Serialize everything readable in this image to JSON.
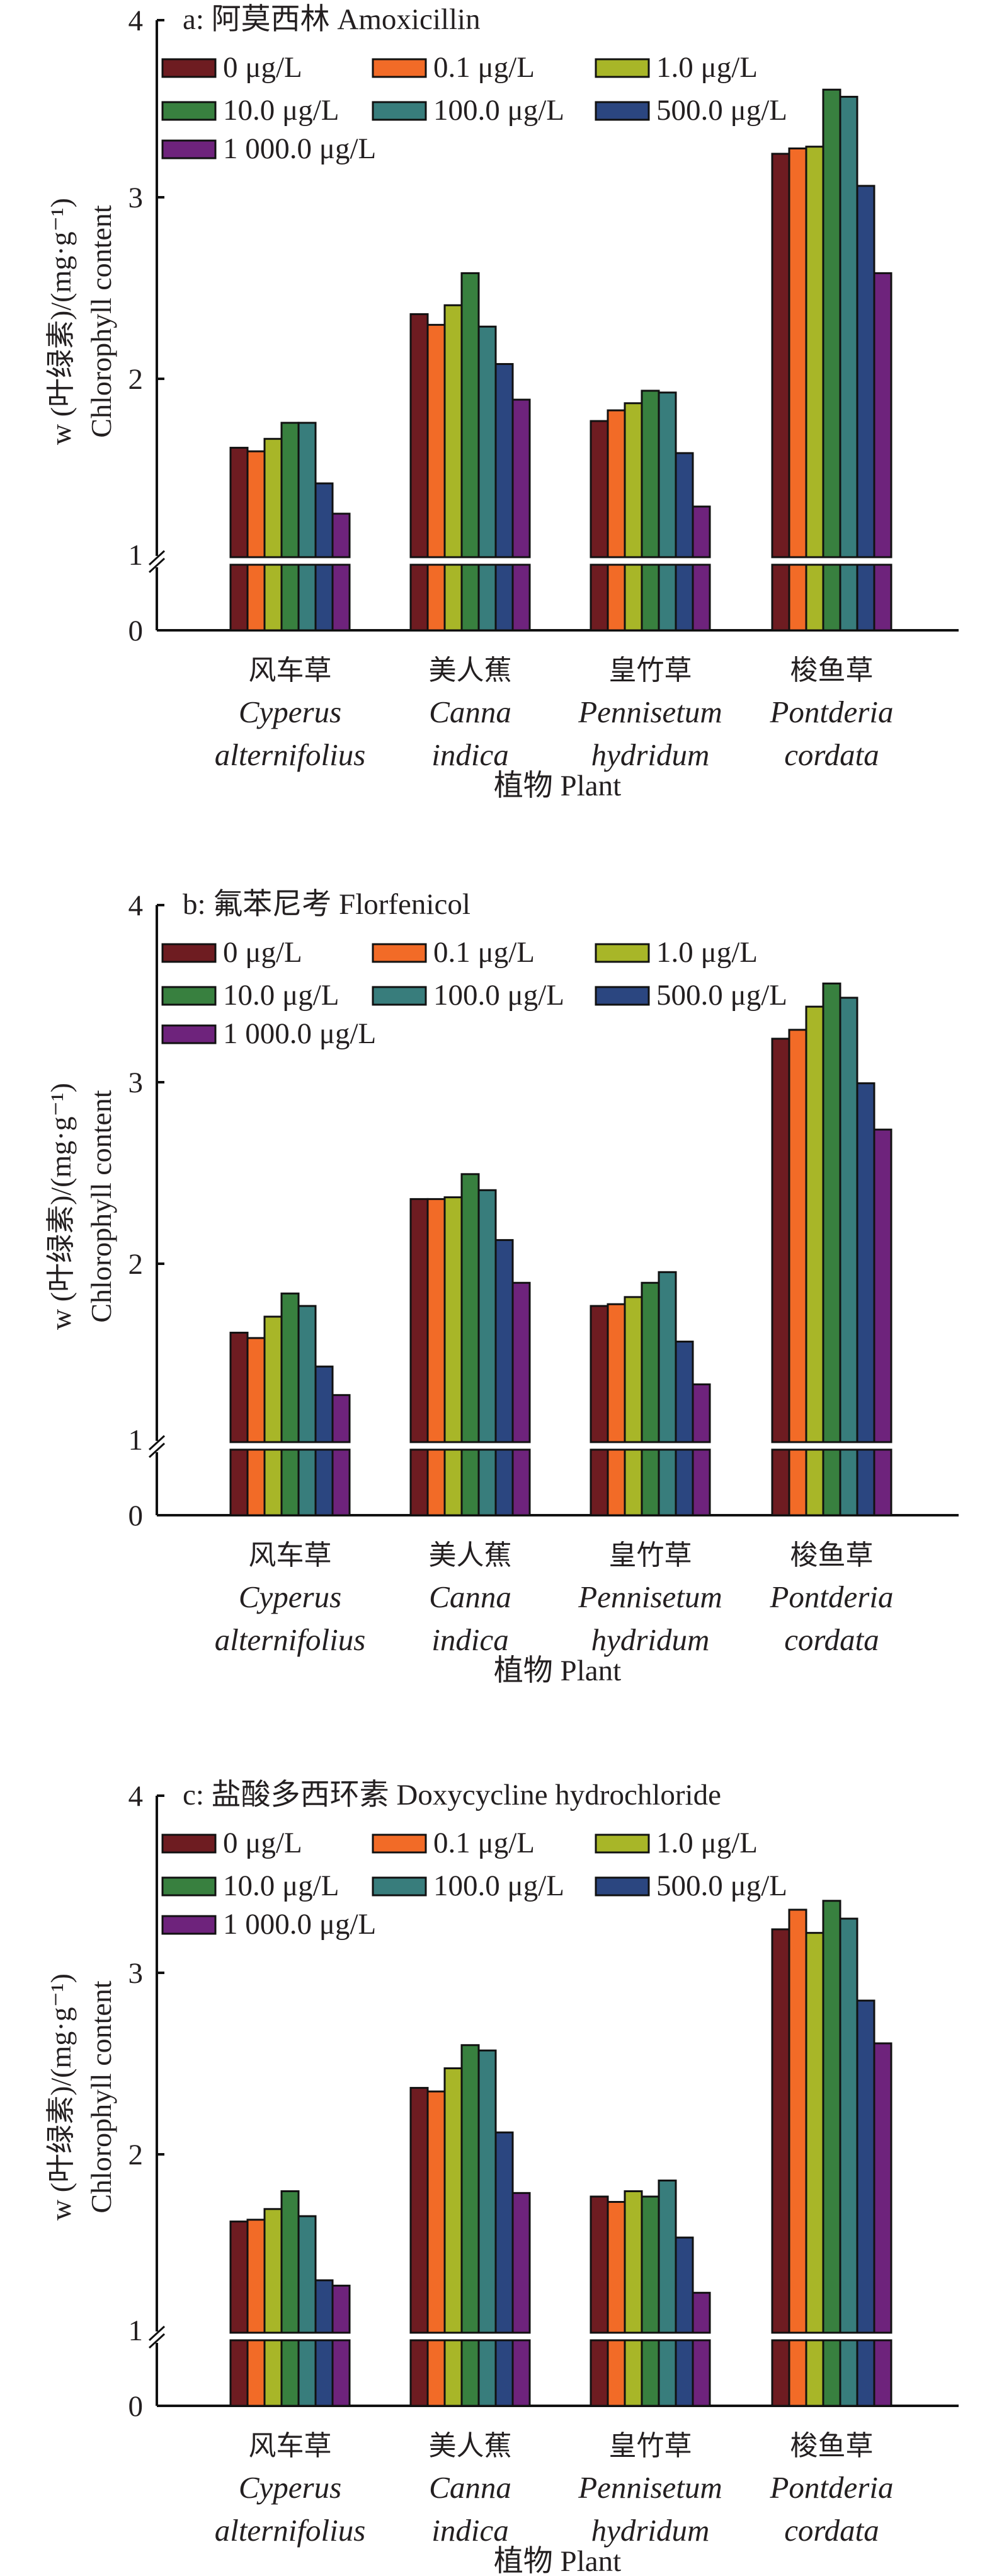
{
  "chart_data": {
    "type": "bar",
    "y_axis_label_line1": "w (叶绿素)/(mg·g⁻¹)",
    "y_axis_label_line2": "Chlorophyll content",
    "xlabel": "植物 Plant",
    "yticks": [
      "0",
      "1",
      "2",
      "3",
      "4"
    ],
    "ylim": [
      0,
      4
    ],
    "axis_break": "between 0 and 1",
    "grid": false,
    "legend_position": "top-left",
    "categories": [
      {
        "cn": "风车草",
        "latin1": "Cyperus",
        "latin2": "alternifolius"
      },
      {
        "cn": "美人蕉",
        "latin1": "Canna",
        "latin2": "indica"
      },
      {
        "cn": "皇竹草",
        "latin1": "Pennisetum",
        "latin2": "hydridum"
      },
      {
        "cn": "梭鱼草",
        "latin1": "Pontderia",
        "latin2": "cordata"
      }
    ],
    "series_meta": [
      {
        "name": "0 μg/L",
        "color": "#6e1c21"
      },
      {
        "name": "0.1 μg/L",
        "color": "#f26b27"
      },
      {
        "name": "1.0 μg/L",
        "color": "#a8b628"
      },
      {
        "name": "10.0 μg/L",
        "color": "#38803f"
      },
      {
        "name": "100.0 μg/L",
        "color": "#387d7c"
      },
      {
        "name": "500.0 μg/L",
        "color": "#2b4680"
      },
      {
        "name": "1 000.0 μg/L",
        "color": "#6e237c"
      }
    ],
    "panels": [
      {
        "title": "a: 阿莫西林 Amoxicillin",
        "series": [
          {
            "name": "0 μg/L",
            "values": [
              1.6,
              2.35,
              1.75,
              3.25
            ]
          },
          {
            "name": "0.1 μg/L",
            "values": [
              1.58,
              2.29,
              1.81,
              3.28
            ]
          },
          {
            "name": "1.0 μg/L",
            "values": [
              1.65,
              2.4,
              1.85,
              3.29
            ]
          },
          {
            "name": "10.0 μg/L",
            "values": [
              1.74,
              2.58,
              1.92,
              3.61
            ]
          },
          {
            "name": "100.0 μg/L",
            "values": [
              1.74,
              2.28,
              1.91,
              3.57
            ]
          },
          {
            "name": "500.0 μg/L",
            "values": [
              1.4,
              2.07,
              1.57,
              3.07
            ]
          },
          {
            "name": "1 000.0 μg/L",
            "values": [
              1.23,
              1.87,
              1.27,
              2.58
            ]
          }
        ]
      },
      {
        "title": "b: 氟苯尼考 Florfenicol",
        "series": [
          {
            "name": "0 μg/L",
            "values": [
              1.6,
              2.35,
              1.75,
              3.25
            ]
          },
          {
            "name": "0.1 μg/L",
            "values": [
              1.57,
              2.35,
              1.76,
              3.3
            ]
          },
          {
            "name": "1.0 μg/L",
            "values": [
              1.69,
              2.36,
              1.8,
              3.43
            ]
          },
          {
            "name": "10.0 μg/L",
            "values": [
              1.82,
              2.49,
              1.88,
              3.56
            ]
          },
          {
            "name": "100.0 μg/L",
            "values": [
              1.75,
              2.4,
              1.94,
              3.48
            ]
          },
          {
            "name": "500.0 μg/L",
            "values": [
              1.41,
              2.12,
              1.55,
              3.0
            ]
          },
          {
            "name": "1 000.0 μg/L",
            "values": [
              1.25,
              1.88,
              1.31,
              2.74
            ]
          }
        ]
      },
      {
        "title": "c: 盐酸多西环素 Doxycycline hydrochloride",
        "series": [
          {
            "name": "0 μg/L",
            "values": [
              1.61,
              2.36,
              1.75,
              3.25
            ]
          },
          {
            "name": "0.1 μg/L",
            "values": [
              1.62,
              2.34,
              1.72,
              3.36
            ]
          },
          {
            "name": "1.0 μg/L",
            "values": [
              1.68,
              2.47,
              1.78,
              3.23
            ]
          },
          {
            "name": "10.0 μg/L",
            "values": [
              1.78,
              2.6,
              1.75,
              3.41
            ]
          },
          {
            "name": "100.0 μg/L",
            "values": [
              1.64,
              2.57,
              1.84,
              3.31
            ]
          },
          {
            "name": "500.0 μg/L",
            "values": [
              1.28,
              2.11,
              1.52,
              2.85
            ]
          },
          {
            "name": "1 000.0 μg/L",
            "values": [
              1.25,
              1.77,
              1.21,
              2.61
            ]
          }
        ]
      }
    ]
  }
}
